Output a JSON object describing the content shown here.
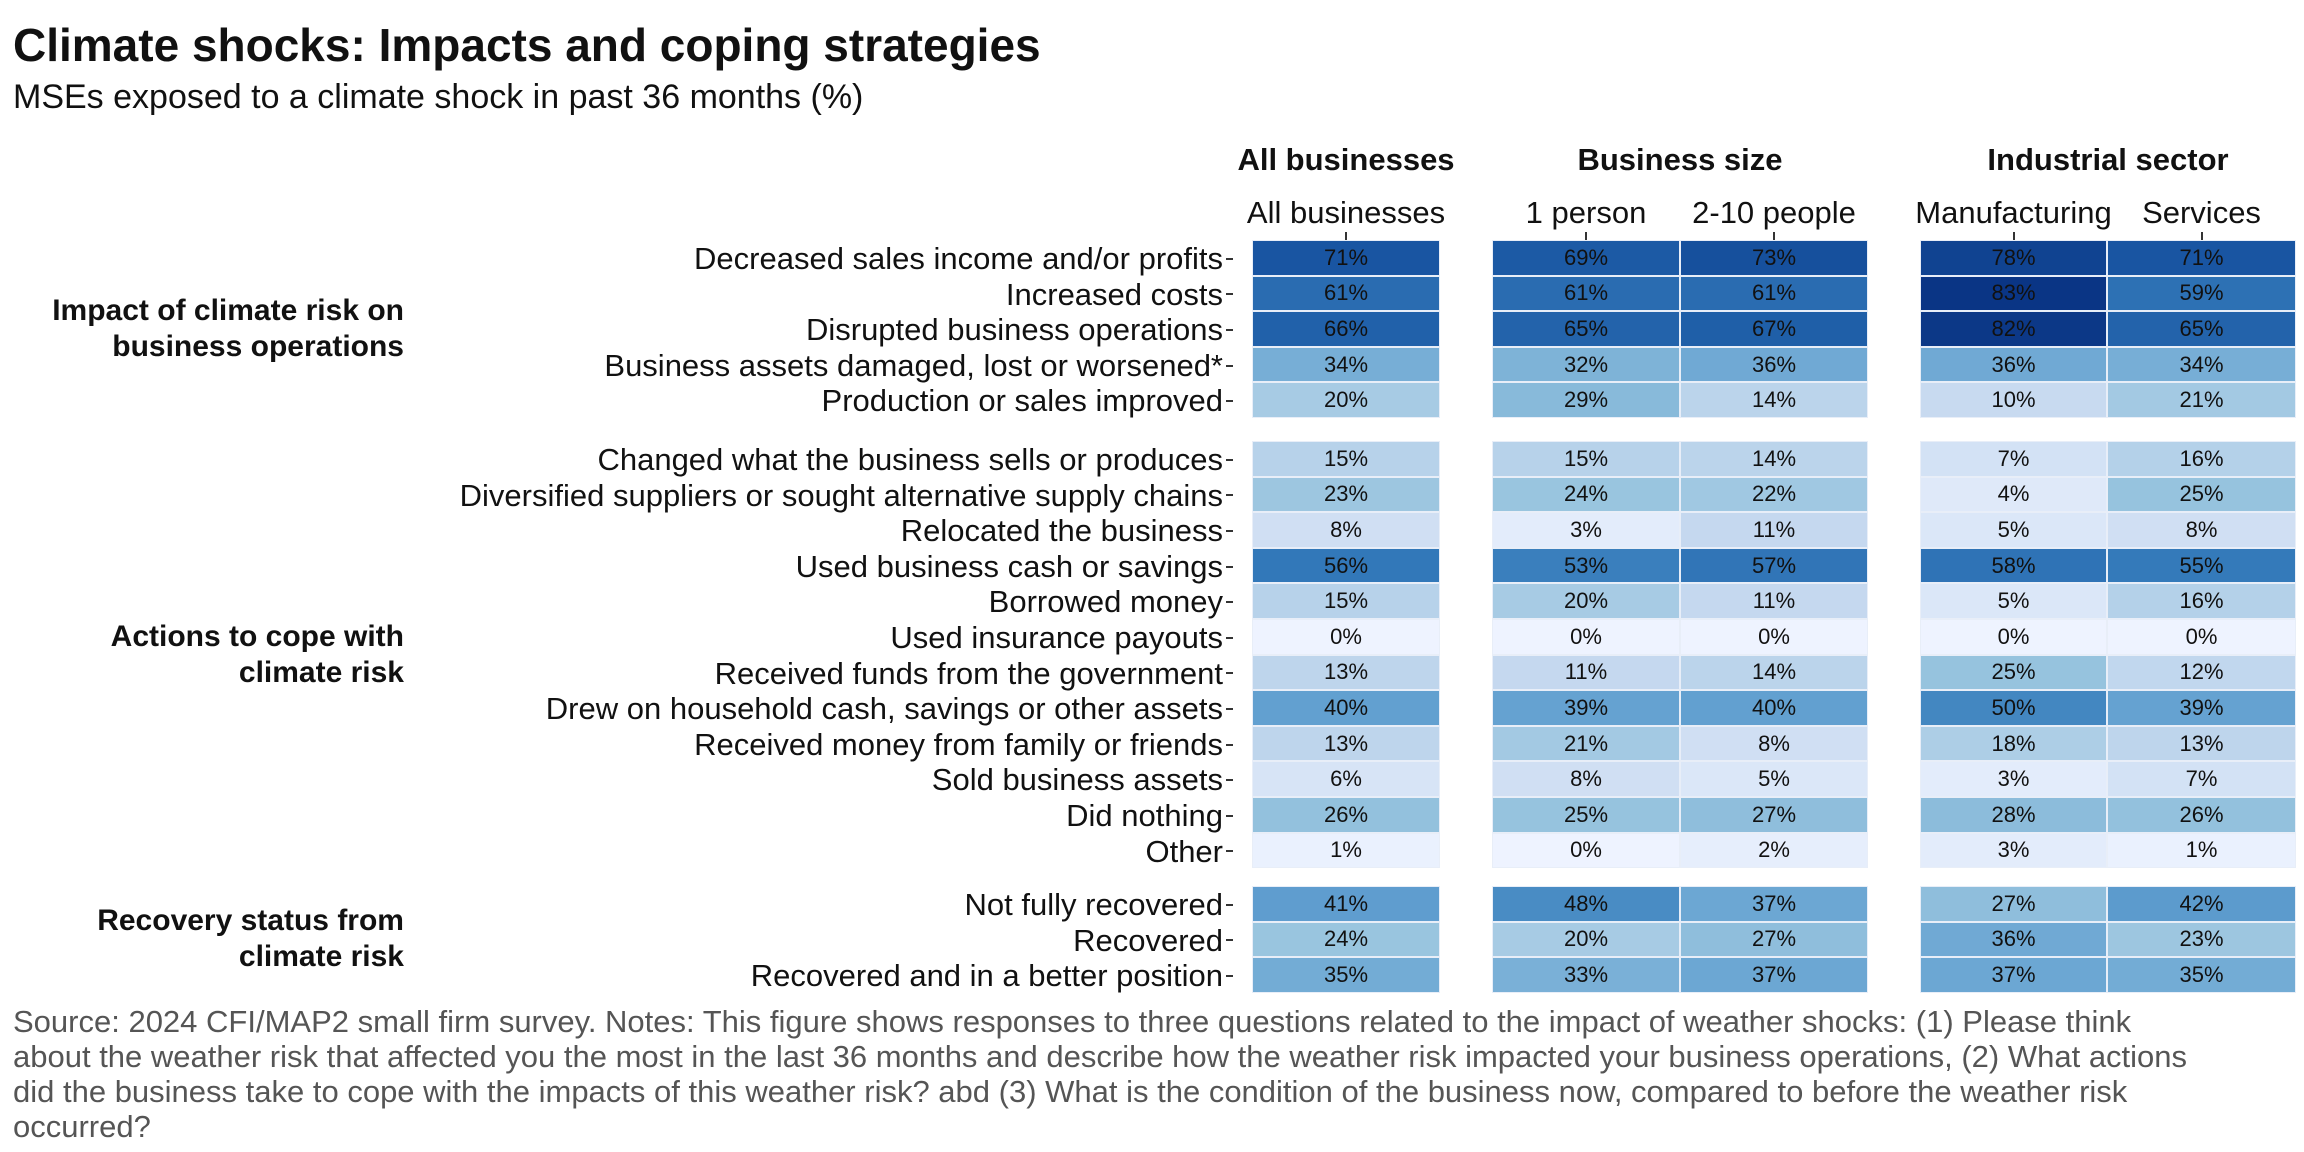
{
  "title": "Climate shocks: Impacts and coping strategies",
  "subtitle": "MSEs exposed to a climate shock in past 36 months (%)",
  "footer": "Source: 2024 CFI/MAP2 small firm survey. Notes: This figure shows responses to three questions related to the impact of weather shocks: (1) Please think about the weather risk that affected you the most in the last 36 months and describe how the weather risk impacted your business operations, (2) What actions did the business take to cope with the impacts of this weather risk? abd (3) What is the condition of the business now, compared to before the weather risk occurred?",
  "chart_data": {
    "type": "heatmap",
    "title": "Climate shocks: Impacts and coping strategies",
    "subtitle": "MSEs exposed to a climate shock in past 36 months (%)",
    "column_groups": [
      {
        "name": "All businesses",
        "columns": [
          "All businesses"
        ]
      },
      {
        "name": "Business size",
        "columns": [
          "1 person",
          "2-10 people"
        ]
      },
      {
        "name": "Industrial sector",
        "columns": [
          "Manufacturing",
          "Services"
        ]
      }
    ],
    "columns": [
      "All businesses",
      "1 person",
      "2-10 people",
      "Manufacturing",
      "Services"
    ],
    "row_groups": [
      {
        "name": "Impact of climate risk on business operations",
        "rows": [
          {
            "label": "Decreased sales income and/or profits",
            "values": [
              71,
              69,
              73,
              78,
              71
            ]
          },
          {
            "label": "Increased costs",
            "values": [
              61,
              61,
              61,
              83,
              59
            ]
          },
          {
            "label": "Disrupted business operations",
            "values": [
              66,
              65,
              67,
              82,
              65
            ]
          },
          {
            "label": "Business assets damaged, lost or worsened*",
            "values": [
              34,
              32,
              36,
              36,
              34
            ]
          },
          {
            "label": "Production or sales improved",
            "values": [
              20,
              29,
              14,
              10,
              21
            ]
          }
        ]
      },
      {
        "name": "Actions to cope with climate risk",
        "rows": [
          {
            "label": "Changed what the business sells or produces",
            "values": [
              15,
              15,
              14,
              7,
              16
            ]
          },
          {
            "label": "Diversified suppliers or sought alternative supply chains",
            "values": [
              23,
              24,
              22,
              4,
              25
            ]
          },
          {
            "label": "Relocated the business",
            "values": [
              8,
              3,
              11,
              5,
              8
            ]
          },
          {
            "label": "Used business cash or savings",
            "values": [
              56,
              53,
              57,
              58,
              55
            ]
          },
          {
            "label": "Borrowed money",
            "values": [
              15,
              20,
              11,
              5,
              16
            ]
          },
          {
            "label": "Used insurance payouts",
            "values": [
              0,
              0,
              0,
              0,
              0
            ]
          },
          {
            "label": "Received funds from the government",
            "values": [
              13,
              11,
              14,
              25,
              12
            ]
          },
          {
            "label": "Drew on household cash, savings or other assets",
            "values": [
              40,
              39,
              40,
              50,
              39
            ]
          },
          {
            "label": "Received money from family or friends",
            "values": [
              13,
              21,
              8,
              18,
              13
            ]
          },
          {
            "label": "Sold business assets",
            "values": [
              6,
              8,
              5,
              3,
              7
            ]
          },
          {
            "label": "Did nothing",
            "values": [
              26,
              25,
              27,
              28,
              26
            ]
          },
          {
            "label": "Other",
            "values": [
              1,
              0,
              2,
              3,
              1
            ]
          }
        ]
      },
      {
        "name": "Recovery status from climate risk",
        "rows": [
          {
            "label": "Not fully recovered",
            "values": [
              41,
              48,
              37,
              27,
              42
            ]
          },
          {
            "label": "Recovered",
            "values": [
              24,
              20,
              27,
              36,
              23
            ]
          },
          {
            "label": "Recovered and in a better position",
            "values": [
              35,
              33,
              37,
              37,
              35
            ]
          }
        ]
      }
    ],
    "value_suffix": "%",
    "color_scale": {
      "low": "#eef3ff",
      "high": "#08306b",
      "domain": [
        0,
        85
      ]
    }
  }
}
